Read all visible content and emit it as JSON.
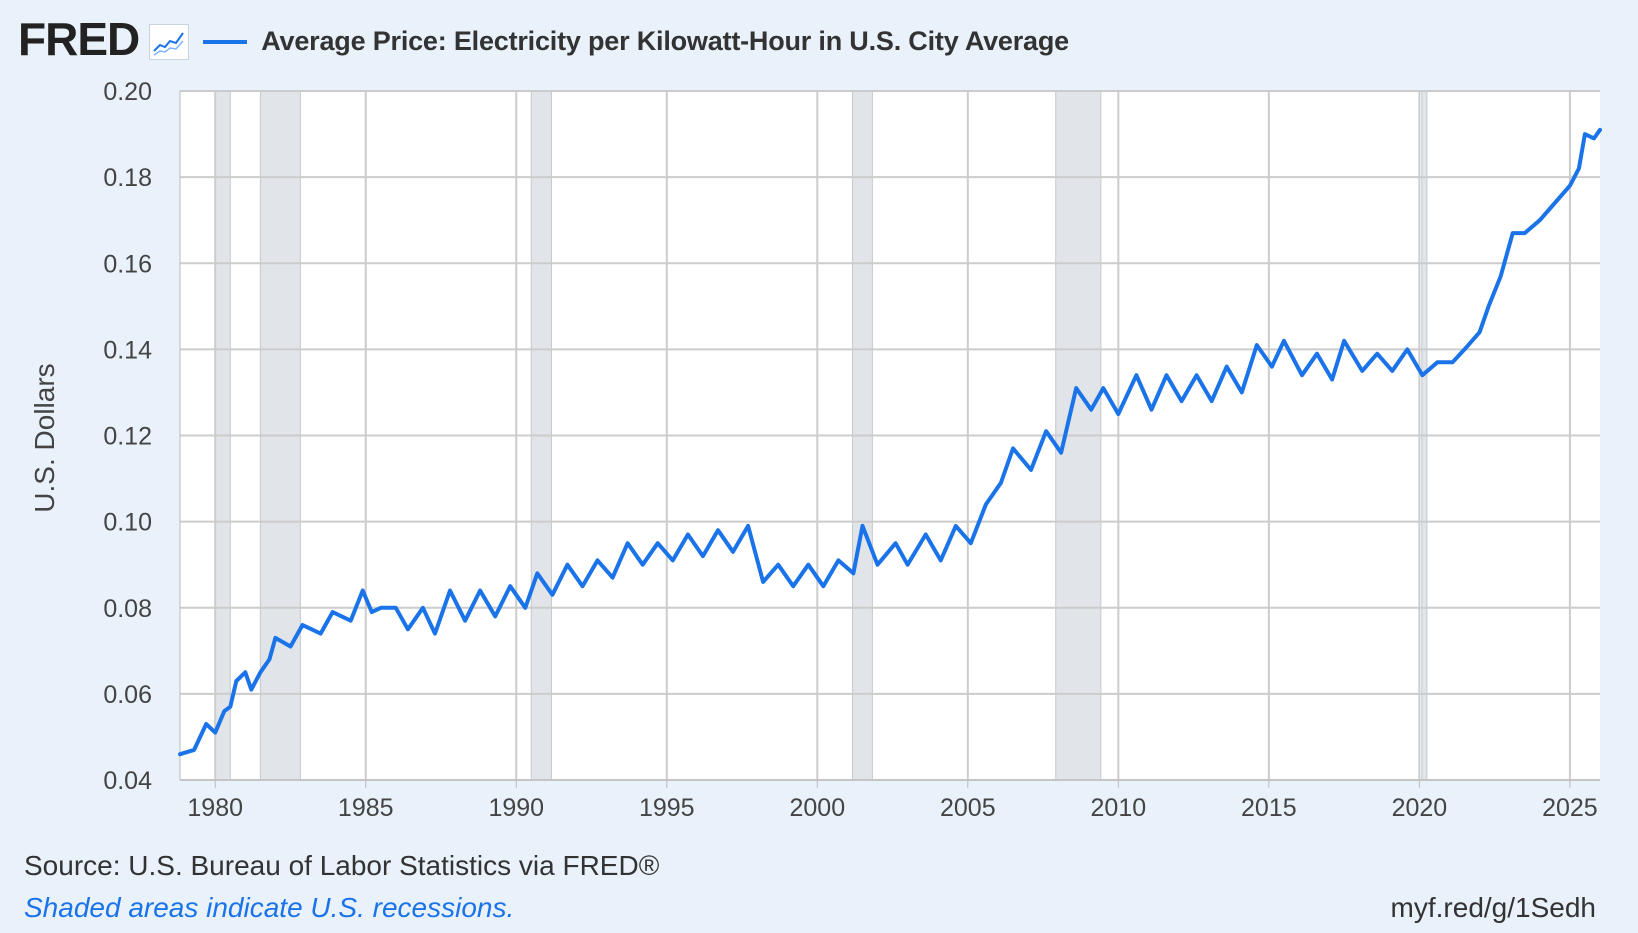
{
  "header": {
    "logo_text": "FRED",
    "legend_label": "Average Price: Electricity per Kilowatt-Hour in U.S. City Average",
    "line_color": "#1a73e8",
    "logo_icon": "trend-chart-icon"
  },
  "footer": {
    "source": "Source: U.S. Bureau of Labor Statistics via FRED®",
    "note": "Shaded areas indicate U.S. recessions.",
    "url": "myf.red/g/1Sedh"
  },
  "chart_data": {
    "type": "line",
    "title": "Average Price: Electricity per Kilowatt-Hour in U.S. City Average",
    "xlabel": "",
    "ylabel": "U.S. Dollars",
    "xlim": [
      1978.83,
      2026.0
    ],
    "ylim": [
      0.04,
      0.2
    ],
    "x_ticks": [
      1980,
      1985,
      1990,
      1995,
      2000,
      2005,
      2010,
      2015,
      2020,
      2025
    ],
    "y_ticks": [
      0.04,
      0.06,
      0.08,
      0.1,
      0.12,
      0.14,
      0.16,
      0.18,
      0.2
    ],
    "y_tick_labels": [
      "0.04",
      "0.06",
      "0.08",
      "0.10",
      "0.12",
      "0.14",
      "0.16",
      "0.18",
      "0.20"
    ],
    "grid": true,
    "legend": "top-left",
    "recessions": [
      [
        1980.0,
        1980.5
      ],
      [
        1981.5,
        1982.83
      ],
      [
        1990.5,
        1991.17
      ],
      [
        2001.17,
        2001.83
      ],
      [
        2007.92,
        2009.42
      ],
      [
        2020.08,
        2020.25
      ]
    ],
    "series": [
      {
        "name": "Average Price: Electricity per Kilowatt-Hour in U.S. City Average",
        "anchors": [
          [
            1978.83,
            0.046
          ],
          [
            1979.3,
            0.047
          ],
          [
            1979.7,
            0.053
          ],
          [
            1980.0,
            0.051
          ],
          [
            1980.3,
            0.056
          ],
          [
            1980.5,
            0.057
          ],
          [
            1980.7,
            0.063
          ],
          [
            1981.0,
            0.065
          ],
          [
            1981.2,
            0.061
          ],
          [
            1981.5,
            0.065
          ],
          [
            1981.8,
            0.068
          ],
          [
            1982.0,
            0.073
          ],
          [
            1982.5,
            0.071
          ],
          [
            1982.9,
            0.076
          ],
          [
            1983.5,
            0.074
          ],
          [
            1983.9,
            0.079
          ],
          [
            1984.5,
            0.077
          ],
          [
            1984.9,
            0.084
          ],
          [
            1985.2,
            0.079
          ],
          [
            1985.5,
            0.08
          ],
          [
            1986.0,
            0.08
          ],
          [
            1986.4,
            0.075
          ],
          [
            1986.9,
            0.08
          ],
          [
            1987.3,
            0.074
          ],
          [
            1987.8,
            0.084
          ],
          [
            1988.3,
            0.077
          ],
          [
            1988.8,
            0.084
          ],
          [
            1989.3,
            0.078
          ],
          [
            1989.8,
            0.085
          ],
          [
            1990.3,
            0.08
          ],
          [
            1990.7,
            0.088
          ],
          [
            1991.2,
            0.083
          ],
          [
            1991.7,
            0.09
          ],
          [
            1992.2,
            0.085
          ],
          [
            1992.7,
            0.091
          ],
          [
            1993.2,
            0.087
          ],
          [
            1993.7,
            0.095
          ],
          [
            1994.2,
            0.09
          ],
          [
            1994.7,
            0.095
          ],
          [
            1995.2,
            0.091
          ],
          [
            1995.7,
            0.097
          ],
          [
            1996.2,
            0.092
          ],
          [
            1996.7,
            0.098
          ],
          [
            1997.2,
            0.093
          ],
          [
            1997.7,
            0.099
          ],
          [
            1998.2,
            0.086
          ],
          [
            1998.7,
            0.09
          ],
          [
            1999.2,
            0.085
          ],
          [
            1999.7,
            0.09
          ],
          [
            2000.2,
            0.085
          ],
          [
            2000.7,
            0.091
          ],
          [
            2001.2,
            0.088
          ],
          [
            2001.5,
            0.099
          ],
          [
            2002.0,
            0.09
          ],
          [
            2002.6,
            0.095
          ],
          [
            2003.0,
            0.09
          ],
          [
            2003.6,
            0.097
          ],
          [
            2004.1,
            0.091
          ],
          [
            2004.6,
            0.099
          ],
          [
            2005.1,
            0.095
          ],
          [
            2005.6,
            0.104
          ],
          [
            2006.1,
            0.109
          ],
          [
            2006.5,
            0.117
          ],
          [
            2007.1,
            0.112
          ],
          [
            2007.6,
            0.121
          ],
          [
            2008.1,
            0.116
          ],
          [
            2008.6,
            0.131
          ],
          [
            2009.1,
            0.126
          ],
          [
            2009.5,
            0.131
          ],
          [
            2010.0,
            0.125
          ],
          [
            2010.6,
            0.134
          ],
          [
            2011.1,
            0.126
          ],
          [
            2011.6,
            0.134
          ],
          [
            2012.1,
            0.128
          ],
          [
            2012.6,
            0.134
          ],
          [
            2013.1,
            0.128
          ],
          [
            2013.6,
            0.136
          ],
          [
            2014.1,
            0.13
          ],
          [
            2014.6,
            0.141
          ],
          [
            2015.1,
            0.136
          ],
          [
            2015.5,
            0.142
          ],
          [
            2016.1,
            0.134
          ],
          [
            2016.6,
            0.139
          ],
          [
            2017.1,
            0.133
          ],
          [
            2017.5,
            0.142
          ],
          [
            2018.1,
            0.135
          ],
          [
            2018.6,
            0.139
          ],
          [
            2019.1,
            0.135
          ],
          [
            2019.6,
            0.14
          ],
          [
            2020.1,
            0.134
          ],
          [
            2020.6,
            0.137
          ],
          [
            2021.1,
            0.137
          ],
          [
            2021.5,
            0.14
          ],
          [
            2022.0,
            0.144
          ],
          [
            2022.3,
            0.15
          ],
          [
            2022.7,
            0.157
          ],
          [
            2023.1,
            0.167
          ],
          [
            2023.5,
            0.167
          ],
          [
            2024.0,
            0.17
          ],
          [
            2024.5,
            0.174
          ],
          [
            2025.0,
            0.178
          ],
          [
            2025.3,
            0.182
          ],
          [
            2025.5,
            0.19
          ],
          [
            2025.8,
            0.189
          ],
          [
            2026.0,
            0.191
          ]
        ]
      }
    ]
  }
}
